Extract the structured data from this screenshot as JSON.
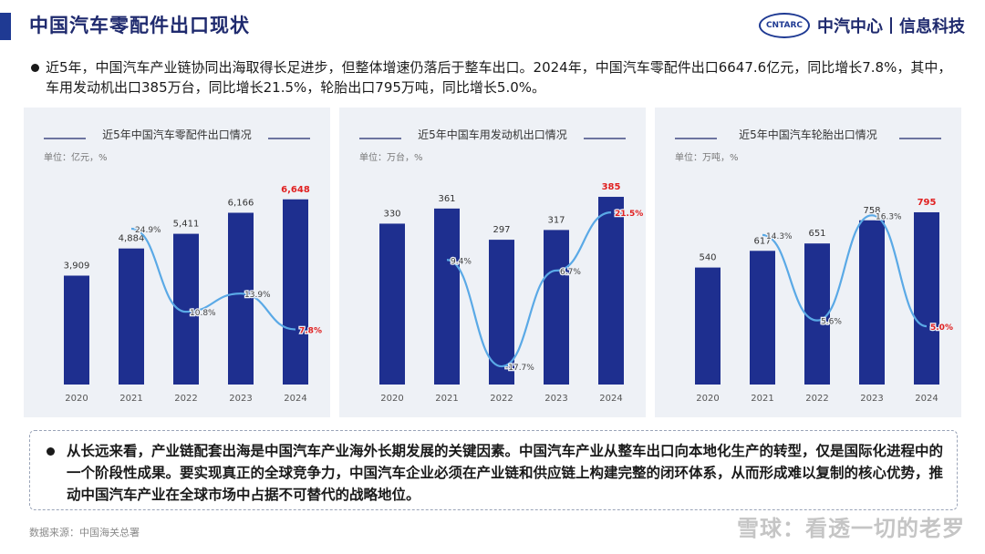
{
  "header": {
    "title": "中国汽车零配件出口现状",
    "brand_logo_text": "CNTARC",
    "brand_name": "中汽中心",
    "brand_sub": "信息科技"
  },
  "intro": "近5年，中国汽车产业链协同出海取得长足进步，但整体增速仍落后于整车出口。2024年，中国汽车零配件出口6647.6亿元，同比增长7.8%，其中，车用发动机出口385万台，同比增长21.5%，轮胎出口795万吨，同比增长5.0%。",
  "conclusion": "从长远来看，产业链配套出海是中国汽车产业海外长期发展的关键因素。中国汽车产业从整车出口向本地化生产的转型，仅是国际化进程中的一个阶段性成果。要实现真正的全球竞争力，中国汽车企业必须在产业链和供应链上构建完整的闭环体系，从而形成难以复制的核心优势，推动中国汽车产业在全球市场中占据不可替代的战略地位。",
  "source": "数据来源：中国海关总署",
  "watermark": "雪球：看透一切的老罗",
  "colors": {
    "bar": "#1e2f8f",
    "line": "#5aa9e6",
    "highlight": "#e02020",
    "panel_bg": "#eef1f6",
    "title": "#1f2a6e"
  },
  "chart_data": [
    {
      "type": "bar",
      "title": "近5年中国汽车零配件出口情况",
      "unit": "单位：亿元，%",
      "categories": [
        "2020",
        "2021",
        "2022",
        "2023",
        "2024"
      ],
      "series": [
        {
          "values": [
            3909,
            4884,
            5411,
            6166,
            6648
          ],
          "labels": [
            "3,909",
            "4,884",
            "5,411",
            "6,166",
            "6,648"
          ]
        }
      ],
      "line": {
        "values": [
          null,
          24.9,
          10.8,
          13.9,
          7.8
        ],
        "labels": [
          "",
          "24.9%",
          "10.8%",
          "13.9%",
          "7.8%"
        ]
      },
      "bar_max": 7000,
      "line_range": [
        0,
        30
      ],
      "highlight_last": true
    },
    {
      "type": "bar",
      "title": "近5年中国车用发动机出口情况",
      "unit": "单位：万台，%",
      "categories": [
        "2020",
        "2021",
        "2022",
        "2023",
        "2024"
      ],
      "series": [
        {
          "values": [
            330,
            361,
            297,
            317,
            385
          ],
          "labels": [
            "330",
            "361",
            "297",
            "317",
            "385"
          ]
        }
      ],
      "line": {
        "values": [
          null,
          9.4,
          -17.7,
          6.7,
          21.5
        ],
        "labels": [
          "",
          "9.4%",
          "-17.7%",
          "6.7%",
          "21.5%"
        ]
      },
      "bar_max": 400,
      "line_range": [
        -20,
        25
      ],
      "highlight_last": true
    },
    {
      "type": "bar",
      "title": "近5年中国汽车轮胎出口情况",
      "unit": "单位：万吨，%",
      "categories": [
        "2020",
        "2021",
        "2022",
        "2023",
        "2024"
      ],
      "series": [
        {
          "values": [
            540,
            617,
            651,
            758,
            795
          ],
          "labels": [
            "540",
            "617",
            "651",
            "758",
            "795"
          ]
        }
      ],
      "line": {
        "values": [
          null,
          14.3,
          5.6,
          16.3,
          5.0
        ],
        "labels": [
          "",
          "14.3%",
          "5.6%",
          "16.3%",
          "5.0%"
        ]
      },
      "bar_max": 900,
      "line_range": [
        0,
        18
      ],
      "highlight_last": true
    }
  ]
}
